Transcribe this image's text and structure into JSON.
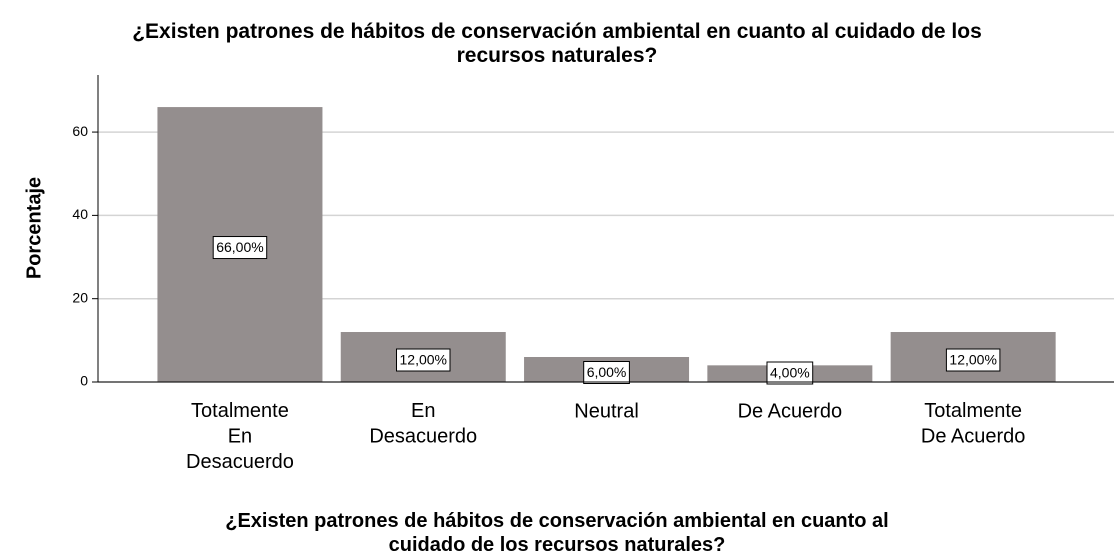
{
  "chart_data": {
    "type": "bar",
    "title": "¿Existen patrones de hábitos de conservación ambiental en cuanto al cuidado de los\nrecursos naturales?",
    "x_label": "¿Existen patrones de hábitos de conservación ambiental en cuanto al\ncuidado de los recursos naturales?",
    "y_label": "Porcentaje",
    "categories": [
      "Totalmente\nEn\nDesacuerdo",
      "En\nDesacuerdo",
      "Neutral",
      "De Acuerdo",
      "Totalmente\nDe Acuerdo"
    ],
    "values": [
      66,
      12,
      6,
      4,
      12
    ],
    "value_labels": [
      "66,00%",
      "12,00%",
      "6,00%",
      "4,00%",
      "12,00%"
    ],
    "color": "#948e8e",
    "ylim": [
      0,
      73.7
    ],
    "yticks": [
      0,
      20,
      40,
      60
    ],
    "grid": true
  }
}
